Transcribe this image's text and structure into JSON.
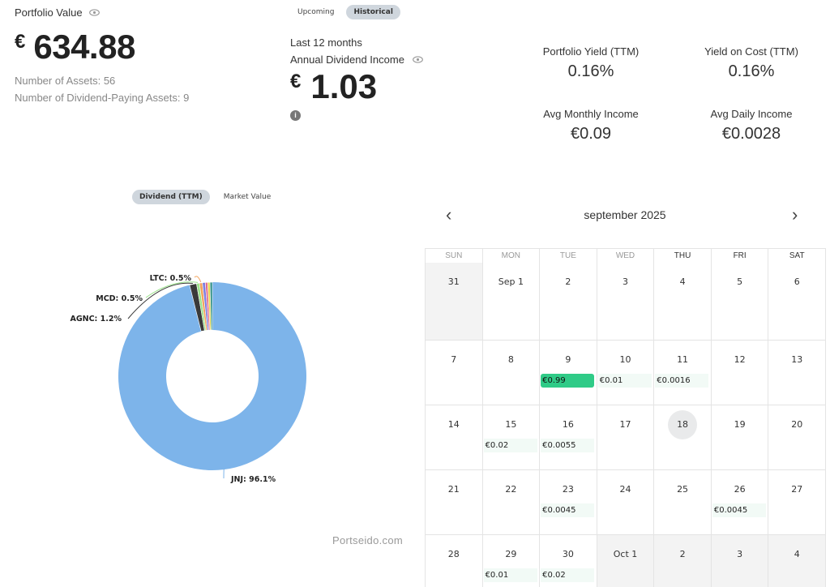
{
  "portfolio": {
    "label": "Portfolio Value",
    "currency": "€",
    "value": "634.88",
    "assets_label": "Number of Assets: 56",
    "dividend_assets_label": "Number of Dividend-Paying Assets: 9"
  },
  "mode_tabs": {
    "upcoming": "Upcoming",
    "historical": "Historical",
    "active": "historical"
  },
  "income": {
    "period": "Last 12 months",
    "label": "Annual Dividend Income",
    "currency": "€",
    "value": "1.03",
    "info_icon": "i"
  },
  "stats": [
    {
      "title": "Portfolio Yield (TTM)",
      "value": "0.16%"
    },
    {
      "title": "Yield on Cost (TTM)",
      "value": "0.16%"
    },
    {
      "title": "Avg Monthly Income",
      "value": "€0.09"
    },
    {
      "title": "Avg Daily Income",
      "value": "€0.0028"
    }
  ],
  "chart_tabs": {
    "dividend": "Dividend (TTM)",
    "market": "Market Value",
    "active": "dividend"
  },
  "chart_data": {
    "type": "pie",
    "donut": true,
    "slices": [
      {
        "label": "JNJ",
        "display": "JNJ: 96.1%",
        "value": 96.1,
        "color": "#7db4ea"
      },
      {
        "label": "AGNC",
        "display": "AGNC: 1.2%",
        "value": 1.2,
        "color": "#3a3a3a"
      },
      {
        "label": "MCD",
        "display": "MCD: 0.5%",
        "value": 0.5,
        "color": "#9be38b"
      },
      {
        "label": "LTC",
        "display": "LTC: 0.5%",
        "value": 0.5,
        "color": "#f3a35c"
      },
      {
        "label": "",
        "value": 0.5,
        "color": "#7f7fe0"
      },
      {
        "label": "",
        "value": 0.4,
        "color": "#e36b8a"
      },
      {
        "label": "",
        "value": 0.4,
        "color": "#e8d84f"
      },
      {
        "label": "",
        "value": 0.4,
        "color": "#2c8f86"
      }
    ]
  },
  "watermark": "Portseido.com",
  "calendar": {
    "title": "september 2025",
    "prev_icon": "‹",
    "next_icon": "›",
    "weekdays": [
      "SUN",
      "MON",
      "TUE",
      "WED",
      "THU",
      "FRI",
      "SAT"
    ],
    "weeks": [
      [
        {
          "day": "31",
          "muted": true
        },
        {
          "day": "Sep 1"
        },
        {
          "day": "2"
        },
        {
          "day": "3"
        },
        {
          "day": "4"
        },
        {
          "day": "5"
        },
        {
          "day": "6"
        }
      ],
      [
        {
          "day": "7"
        },
        {
          "day": "8"
        },
        {
          "day": "9",
          "event": "€0.99",
          "strong": true
        },
        {
          "day": "10",
          "event": "€0.01"
        },
        {
          "day": "11",
          "event": "€0.0016"
        },
        {
          "day": "12"
        },
        {
          "day": "13"
        }
      ],
      [
        {
          "day": "14"
        },
        {
          "day": "15",
          "event": "€0.02"
        },
        {
          "day": "16",
          "event": "€0.0055"
        },
        {
          "day": "17"
        },
        {
          "day": "18",
          "today": true
        },
        {
          "day": "19"
        },
        {
          "day": "20"
        }
      ],
      [
        {
          "day": "21"
        },
        {
          "day": "22"
        },
        {
          "day": "23",
          "event": "€0.0045"
        },
        {
          "day": "24"
        },
        {
          "day": "25"
        },
        {
          "day": "26",
          "event": "€0.0045"
        },
        {
          "day": "27"
        }
      ],
      [
        {
          "day": "28"
        },
        {
          "day": "29",
          "event": "€0.01"
        },
        {
          "day": "30",
          "event": "€0.02"
        },
        {
          "day": "Oct 1",
          "muted": true
        },
        {
          "day": "2",
          "muted": true
        },
        {
          "day": "3",
          "muted": true
        },
        {
          "day": "4",
          "muted": true
        }
      ]
    ]
  }
}
